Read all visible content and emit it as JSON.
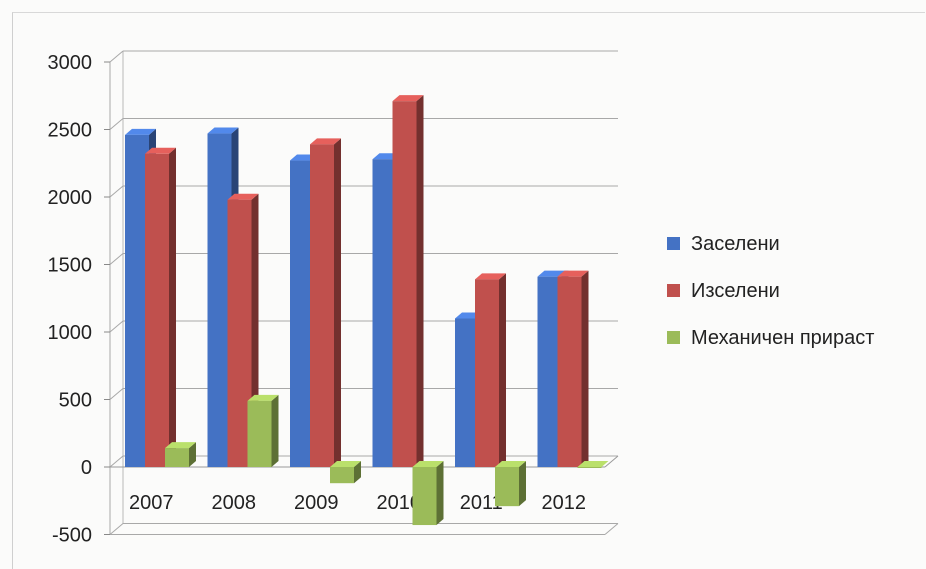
{
  "chart_data": {
    "type": "bar",
    "categories": [
      "2007",
      "2008",
      "2009",
      "2010",
      "2011",
      "2012"
    ],
    "series": [
      {
        "name": "Заселени",
        "values": [
          2460,
          2470,
          2270,
          2280,
          1100,
          1410
        ],
        "color": "#4472c4"
      },
      {
        "name": "Изселени",
        "values": [
          2320,
          1980,
          2390,
          2710,
          1390,
          1410
        ],
        "color": "#c0504d"
      },
      {
        "name": "Механичен прираст",
        "values": [
          140,
          490,
          -120,
          -430,
          -290,
          0
        ],
        "color": "#9bbb59"
      }
    ],
    "yticks": [
      "-500",
      "0",
      "500",
      "1000",
      "1500",
      "2000",
      "2500",
      "3000"
    ],
    "ylim": [
      -500,
      3000
    ],
    "grid": true,
    "legend_position": "right"
  }
}
